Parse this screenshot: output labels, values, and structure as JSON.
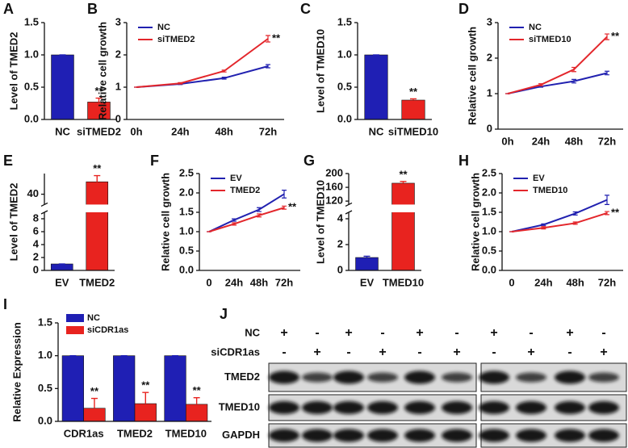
{
  "chart_data": [
    {
      "label": "A",
      "type": "bar",
      "y_label": "Level of TMED2",
      "categories": [
        "NC",
        "siTMED2"
      ],
      "values": [
        1.0,
        0.27
      ],
      "errors": [
        0,
        0.06
      ],
      "colors": [
        "#1f1fb4",
        "#e8231f"
      ],
      "annotations": [
        null,
        "**"
      ],
      "ylim": [
        0,
        1.5
      ],
      "yticks": [
        {
          "value": 0,
          "label": "0.0"
        },
        {
          "value": 0.5,
          "label": "0.5"
        },
        {
          "value": 1,
          "label": "1.0"
        },
        {
          "value": 1.5,
          "label": "1.5"
        }
      ]
    },
    {
      "label": "B",
      "type": "line",
      "y_label": "Relative cell growth",
      "categories": [
        "0h",
        "24h",
        "48h",
        "72h"
      ],
      "series": [
        {
          "name": "NC",
          "color": "#2121b0",
          "values": [
            1,
            1.1,
            1.28,
            1.65
          ],
          "errors": [
            0,
            0.02,
            0.03,
            0.05
          ]
        },
        {
          "name": "siTMED2",
          "color": "#e3262b",
          "values": [
            1,
            1.12,
            1.5,
            2.5
          ],
          "errors": [
            0,
            0.02,
            0.03,
            0.1
          ],
          "annotation": "**"
        }
      ],
      "ylim": [
        0,
        3
      ],
      "yticks": [
        0,
        1,
        2,
        3
      ]
    },
    {
      "label": "C",
      "type": "bar",
      "y_label": "Level of TMED10",
      "categories": [
        "NC",
        "siTMED10"
      ],
      "values": [
        1.0,
        0.3
      ],
      "errors": [
        0,
        0.02
      ],
      "colors": [
        "#1f1fb4",
        "#e8231f"
      ],
      "annotations": [
        null,
        "**"
      ],
      "ylim": [
        0,
        1.5
      ],
      "yticks": [
        {
          "value": 0,
          "label": "0.0"
        },
        {
          "value": 0.5,
          "label": "0.5"
        },
        {
          "value": 1,
          "label": "1.0"
        },
        {
          "value": 1.5,
          "label": "1.5"
        }
      ]
    },
    {
      "label": "D",
      "type": "line",
      "y_label": "Relative cell growth",
      "categories": [
        "0h",
        "24h",
        "48h",
        "72h"
      ],
      "series": [
        {
          "name": "NC",
          "color": "#2121b0",
          "values": [
            1,
            1.2,
            1.35,
            1.58
          ],
          "errors": [
            0,
            0.02,
            0.05,
            0.05
          ]
        },
        {
          "name": "siTMED10",
          "color": "#e3262b",
          "values": [
            1,
            1.25,
            1.68,
            2.6
          ],
          "errors": [
            0,
            0.03,
            0.06,
            0.08
          ],
          "annotation": "**"
        }
      ],
      "ylim": [
        0,
        3
      ],
      "yticks": [
        0,
        1,
        2,
        3
      ]
    },
    {
      "label": "E",
      "type": "bar",
      "y_label": "Level of TMED2",
      "categories": [
        "EV",
        "TMED2"
      ],
      "values": [
        1,
        46
      ],
      "errors": [
        0,
        3
      ],
      "colors": [
        "#1f1fb4",
        "#e8231f"
      ],
      "annotations": [
        null,
        "**"
      ],
      "ylim": [
        0,
        50
      ],
      "ybreak": [
        9,
        35
      ],
      "yticks": [
        0,
        2,
        4,
        6,
        8,
        40
      ]
    },
    {
      "label": "F",
      "type": "line",
      "y_label": "Relative cell growth",
      "categories": [
        "0",
        "24h",
        "48h",
        "72h"
      ],
      "series": [
        {
          "name": "EV",
          "color": "#2121b0",
          "values": [
            1,
            1.3,
            1.57,
            1.97
          ],
          "errors": [
            0,
            0.03,
            0.05,
            0.1
          ]
        },
        {
          "name": "TMED2",
          "color": "#e3262b",
          "values": [
            1,
            1.2,
            1.42,
            1.62
          ],
          "errors": [
            0,
            0.03,
            0.04,
            0.04
          ],
          "annotation": "**"
        }
      ],
      "ylim": [
        0,
        2.5
      ],
      "yticks": [
        {
          "value": 0,
          "label": "0.0"
        },
        {
          "value": 0.5,
          "label": "0.5"
        },
        {
          "value": 1,
          "label": "1.0"
        },
        {
          "value": 1.5,
          "label": "1.5"
        },
        {
          "value": 2,
          "label": "2.0"
        },
        {
          "value": 2.5,
          "label": "2.5"
        }
      ]
    },
    {
      "label": "G",
      "type": "bar",
      "y_label": "Level of TMED10",
      "categories": [
        "EV",
        "TMED10"
      ],
      "values": [
        1,
        172
      ],
      "errors": [
        0.1,
        5
      ],
      "colors": [
        "#1f1fb4",
        "#e8231f"
      ],
      "annotations": [
        null,
        "**"
      ],
      "ylim": [
        0,
        200
      ],
      "ybreak": [
        4.5,
        110
      ],
      "yticks": [
        0,
        2,
        4,
        120,
        160,
        200
      ]
    },
    {
      "label": "H",
      "type": "line",
      "y_label": "Relative cell growth",
      "categories": [
        "0",
        "24h",
        "48h",
        "72h"
      ],
      "series": [
        {
          "name": "EV",
          "color": "#2121b0",
          "values": [
            1,
            1.18,
            1.47,
            1.82
          ],
          "errors": [
            0,
            0.02,
            0.04,
            0.12
          ]
        },
        {
          "name": "TMED10",
          "color": "#e3262b",
          "values": [
            1,
            1.1,
            1.22,
            1.48
          ],
          "errors": [
            0,
            0.03,
            0.03,
            0.04
          ],
          "annotation": "**"
        }
      ],
      "ylim": [
        0,
        2.5
      ],
      "yticks": [
        {
          "value": 0,
          "label": "0.0"
        },
        {
          "value": 0.5,
          "label": "0.5"
        },
        {
          "value": 1,
          "label": "1.0"
        },
        {
          "value": 1.5,
          "label": "1.5"
        },
        {
          "value": 2,
          "label": "2.0"
        },
        {
          "value": 2.5,
          "label": "2.5"
        }
      ]
    },
    {
      "label": "I",
      "type": "bar",
      "y_label": "Relative Expression",
      "categories": [
        "CDR1as",
        "TMED2",
        "TMED10"
      ],
      "series": [
        {
          "name": "NC",
          "color": "#1f1fb4",
          "values": [
            1,
            1,
            1
          ],
          "errors": [
            0,
            0,
            0
          ]
        },
        {
          "name": "siCDR1as",
          "color": "#e8231f",
          "values": [
            0.2,
            0.27,
            0.26
          ],
          "errors": [
            0.15,
            0.17,
            0.1
          ],
          "annotations": [
            "**",
            "**",
            "**"
          ]
        }
      ],
      "ylim": [
        0,
        1.5
      ],
      "yticks": [
        {
          "value": 0,
          "label": "0.0"
        },
        {
          "value": 0.5,
          "label": "0.5"
        },
        {
          "value": 1,
          "label": "1.0"
        },
        {
          "value": 1.5,
          "label": "1.5"
        }
      ]
    }
  ],
  "western_blot": {
    "label": "J",
    "rows": [
      {
        "name": "NC",
        "marks": [
          "+",
          "-",
          "+",
          "-",
          "+",
          "-",
          "+",
          "-",
          "+",
          "-"
        ]
      },
      {
        "name": "siCDR1as",
        "marks": [
          "-",
          "+",
          "-",
          "+",
          "-",
          "+",
          "-",
          "+",
          "-",
          "+"
        ]
      }
    ],
    "bands": [
      "TMED2",
      "TMED10",
      "GAPDH"
    ]
  }
}
